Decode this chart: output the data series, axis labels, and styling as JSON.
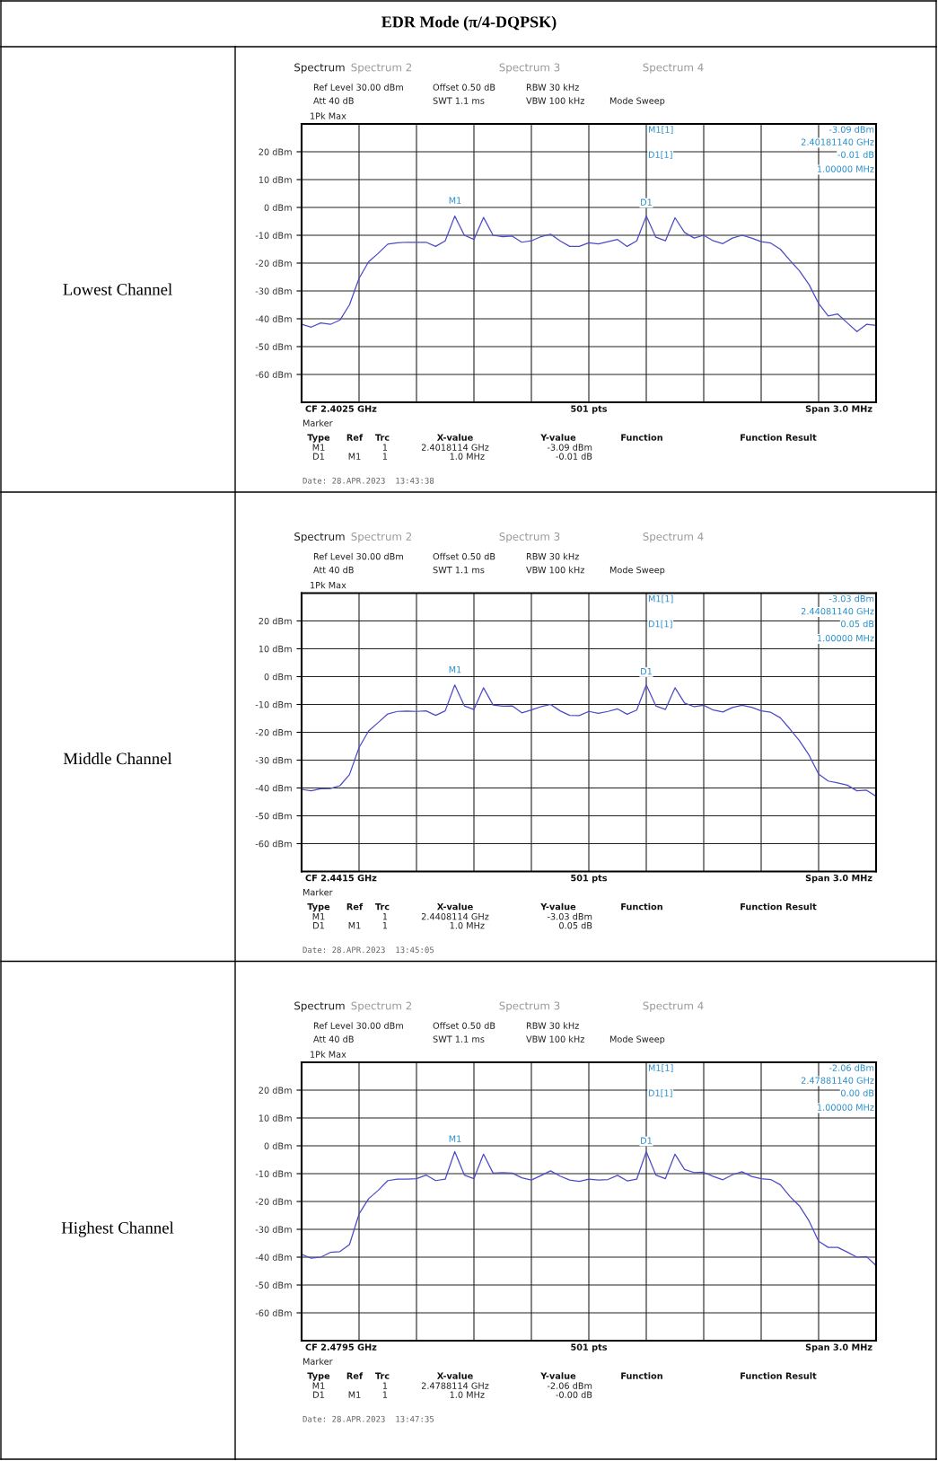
{
  "chart_data": [
    {
      "type": "line",
      "title": "EDR Mode (π/4-DQPSK)",
      "ylabel": "Lowest Channel",
      "categories": [
        null,
        null,
        null,
        null,
        null,
        null,
        null,
        null,
        null,
        null,
        null,
        null,
        null,
        null,
        null,
        null,
        null,
        null,
        null,
        null,
        null,
        null,
        null,
        null,
        null,
        null,
        null,
        null,
        null,
        null,
        null,
        null,
        null,
        null,
        null,
        null,
        null,
        null,
        null,
        null,
        null,
        null,
        null,
        null,
        null,
        null,
        null,
        null,
        null,
        null,
        null,
        null,
        null,
        null,
        null,
        null,
        null,
        null,
        null,
        null,
        null
      ],
      "series": [
        {
          "color": "#4b4bc8",
          "values": [
            -42,
            -43,
            -41.5,
            -42,
            -40.5,
            -35,
            -25.5,
            -19.5,
            -16.5,
            -13.2,
            -12.7,
            -12.5,
            -12.5,
            -12.5,
            -14,
            -12,
            -3.1,
            -10,
            -11.5,
            -3.6,
            -10,
            -10.5,
            -10.3,
            -12.5,
            -12,
            -10.5,
            -9.6,
            -12,
            -14,
            -14,
            -12.7,
            -13.1,
            -12.3,
            -11.5,
            -14,
            -12,
            -3.1,
            -10.7,
            -12,
            -3.7,
            -9,
            -11,
            -10,
            -12,
            -13,
            -11,
            -10,
            -11,
            -12.3,
            -12.8,
            -15,
            -19,
            -22.8,
            -27.7,
            -34.5,
            -39,
            -38.3,
            -41.5,
            -44.6,
            -42,
            -42.4
          ]
        }
      ],
      "ylim": [
        -70,
        30
      ],
      "yticks": [
        {
          "value": 20,
          "label": "20 dBm"
        },
        {
          "value": 10,
          "label": "10 dBm"
        },
        {
          "value": 0,
          "label": "0 dBm"
        },
        {
          "value": -10,
          "label": "-10 dBm"
        },
        {
          "value": -20,
          "label": "-20 dBm"
        },
        {
          "value": -30,
          "label": "-30 dBm"
        },
        {
          "value": -40,
          "label": "-40 dBm"
        },
        {
          "value": -50,
          "label": "-50 dBm"
        },
        {
          "value": -60,
          "label": "-60 dBm"
        }
      ],
      "tick_labels": "y",
      "grid": true,
      "marker": "none",
      "line_style": "solid",
      "annotations": [
        "Spectrum",
        "Spectrum 2",
        "Spectrum 3",
        "Spectrum 4",
        "Ref Level 30.00 dBm",
        "Offset 0.50 dB",
        "RBW 30 kHz",
        "Att 40 dB",
        "SWT 1.1 ms",
        "VBW 100 kHz",
        "Mode Sweep",
        "1Pk Max",
        "M1[1]",
        "-3.09 dBm",
        "2.40181140 GHz",
        "D1[1]",
        "-0.01 dB",
        "1.00000 MHz",
        "CF 2.4025 GHz",
        "501 pts",
        "Span 3.0 MHz",
        "Marker",
        "Type",
        "Ref",
        "Trc",
        "X-value",
        "Y-value",
        "Function",
        "Function Result",
        "M1",
        "1",
        "2.4018114 GHz",
        "-3.09 dBm",
        "D1",
        "M1",
        "1",
        "1.0 MHz",
        "-0.01 dB",
        "Date: 28.APR.2023  13:43:38",
        "M1",
        "D1"
      ]
    },
    {
      "type": "line",
      "ylabel": "Middle Channel",
      "categories": [
        null,
        null,
        null,
        null,
        null,
        null,
        null,
        null,
        null,
        null,
        null,
        null,
        null,
        null,
        null,
        null,
        null,
        null,
        null,
        null,
        null,
        null,
        null,
        null,
        null,
        null,
        null,
        null,
        null,
        null,
        null,
        null,
        null,
        null,
        null,
        null,
        null,
        null,
        null,
        null,
        null,
        null,
        null,
        null,
        null,
        null,
        null,
        null,
        null,
        null,
        null,
        null,
        null,
        null,
        null,
        null,
        null,
        null,
        null,
        null,
        null
      ],
      "series": [
        {
          "color": "#4b4bc8",
          "values": [
            -40.5,
            -41,
            -40.3,
            -40.2,
            -39.2,
            -35.2,
            -25.5,
            -19.5,
            -16.5,
            -13.4,
            -12.5,
            -12.4,
            -12.5,
            -12.3,
            -13.9,
            -12.3,
            -3.0,
            -10.5,
            -11.8,
            -4,
            -10.2,
            -10.6,
            -10.5,
            -13,
            -12,
            -10.8,
            -10,
            -12.3,
            -13.9,
            -14,
            -12.5,
            -13.2,
            -12.5,
            -11.6,
            -13.5,
            -12,
            -3.0,
            -10.5,
            -11.8,
            -4,
            -9.5,
            -10.8,
            -10.3,
            -12,
            -12.7,
            -11.1,
            -10.3,
            -11,
            -12.3,
            -12.8,
            -14.8,
            -18.8,
            -23,
            -28.2,
            -35,
            -37.5,
            -38.2,
            -39,
            -41,
            -40.8,
            -43
          ]
        }
      ],
      "ylim": [
        -70,
        30
      ],
      "yticks": [
        {
          "value": 20,
          "label": "20 dBm"
        },
        {
          "value": 10,
          "label": "10 dBm"
        },
        {
          "value": 0,
          "label": "0 dBm"
        },
        {
          "value": -10,
          "label": "-10 dBm"
        },
        {
          "value": -20,
          "label": "-20 dBm"
        },
        {
          "value": -30,
          "label": "-30 dBm"
        },
        {
          "value": -40,
          "label": "-40 dBm"
        },
        {
          "value": -50,
          "label": "-50 dBm"
        },
        {
          "value": -60,
          "label": "-60 dBm"
        }
      ],
      "tick_labels": "y",
      "grid": true,
      "marker": "none",
      "line_style": "solid",
      "annotations": [
        "Spectrum",
        "Spectrum 2",
        "Spectrum 3",
        "Spectrum 4",
        "Ref Level 30.00 dBm",
        "Offset 0.50 dB",
        "RBW 30 kHz",
        "Att 40 dB",
        "SWT 1.1 ms",
        "VBW 100 kHz",
        "Mode Sweep",
        "1Pk Max",
        "M1[1]",
        "-3.03 dBm",
        "2.44081140 GHz",
        "D1[1]",
        "0.05 dB",
        "1.00000 MHz",
        "CF 2.4415 GHz",
        "501 pts",
        "Span 3.0 MHz",
        "Marker",
        "Type",
        "Ref",
        "Trc",
        "X-value",
        "Y-value",
        "Function",
        "Function Result",
        "M1",
        "1",
        "2.4408114 GHz",
        "-3.03 dBm",
        "D1",
        "M1",
        "1",
        "1.0 MHz",
        "0.05 dB",
        "Date: 28.APR.2023  13:45:05",
        "M1",
        "D1"
      ]
    },
    {
      "type": "line",
      "ylabel": "Highest Channel",
      "categories": [
        null,
        null,
        null,
        null,
        null,
        null,
        null,
        null,
        null,
        null,
        null,
        null,
        null,
        null,
        null,
        null,
        null,
        null,
        null,
        null,
        null,
        null,
        null,
        null,
        null,
        null,
        null,
        null,
        null,
        null,
        null,
        null,
        null,
        null,
        null,
        null,
        null,
        null,
        null,
        null,
        null,
        null,
        null,
        null,
        null,
        null,
        null,
        null,
        null,
        null,
        null,
        null,
        null,
        null,
        null,
        null,
        null,
        null,
        null,
        null,
        null
      ],
      "series": [
        {
          "color": "#4b4bc8",
          "values": [
            -39,
            -40.4,
            -40,
            -38.3,
            -38,
            -35.5,
            -24.5,
            -19,
            -16,
            -12.5,
            -12,
            -12,
            -11.8,
            -10.5,
            -12.5,
            -12,
            -2.1,
            -10.5,
            -11.8,
            -3,
            -9.8,
            -9.6,
            -9.8,
            -11.5,
            -12.3,
            -10.7,
            -9,
            -10.9,
            -12.3,
            -12.8,
            -12,
            -12.3,
            -12.1,
            -10.6,
            -12.6,
            -12,
            -2.1,
            -10.5,
            -11.8,
            -3,
            -8.5,
            -9.6,
            -9.5,
            -11,
            -12.2,
            -10.4,
            -9.3,
            -11,
            -11.8,
            -12.1,
            -14,
            -18.2,
            -21.6,
            -27,
            -34.3,
            -36.5,
            -36.5,
            -38.2,
            -40,
            -39.8,
            -43
          ]
        }
      ],
      "ylim": [
        -70,
        30
      ],
      "yticks": [
        {
          "value": 20,
          "label": "20 dBm"
        },
        {
          "value": 10,
          "label": "10 dBm"
        },
        {
          "value": 0,
          "label": "0 dBm"
        },
        {
          "value": -10,
          "label": "-10 dBm"
        },
        {
          "value": -20,
          "label": "-20 dBm"
        },
        {
          "value": -30,
          "label": "-30 dBm"
        },
        {
          "value": -40,
          "label": "-40 dBm"
        },
        {
          "value": -50,
          "label": "-50 dBm"
        },
        {
          "value": -60,
          "label": "-60 dBm"
        }
      ],
      "tick_labels": "y",
      "grid": true,
      "marker": "none",
      "line_style": "solid",
      "annotations": [
        "Spectrum",
        "Spectrum 2",
        "Spectrum 3",
        "Spectrum 4",
        "Ref Level 30.00 dBm",
        "Offset 0.50 dB",
        "RBW 30 kHz",
        "Att 40 dB",
        "SWT 1.1 ms",
        "VBW 100 kHz",
        "Mode Sweep",
        "1Pk Max",
        "M1[1]",
        "-2.06 dBm",
        "2.47881140 GHz",
        "D1[1]",
        "0.00 dB",
        "1.00000 MHz",
        "CF 2.4795 GHz",
        "501 pts",
        "Span 3.0 MHz",
        "Marker",
        "Type",
        "Ref",
        "Trc",
        "X-value",
        "Y-value",
        "Function",
        "Function Result",
        "M1",
        "1",
        "2.4788114 GHz",
        "-2.06 dBm",
        "D1",
        "M1",
        "1",
        "1.0 MHz",
        "-0.00 dB",
        "Date: 28.APR.2023  13:47:35",
        "M1",
        "D1"
      ]
    }
  ]
}
